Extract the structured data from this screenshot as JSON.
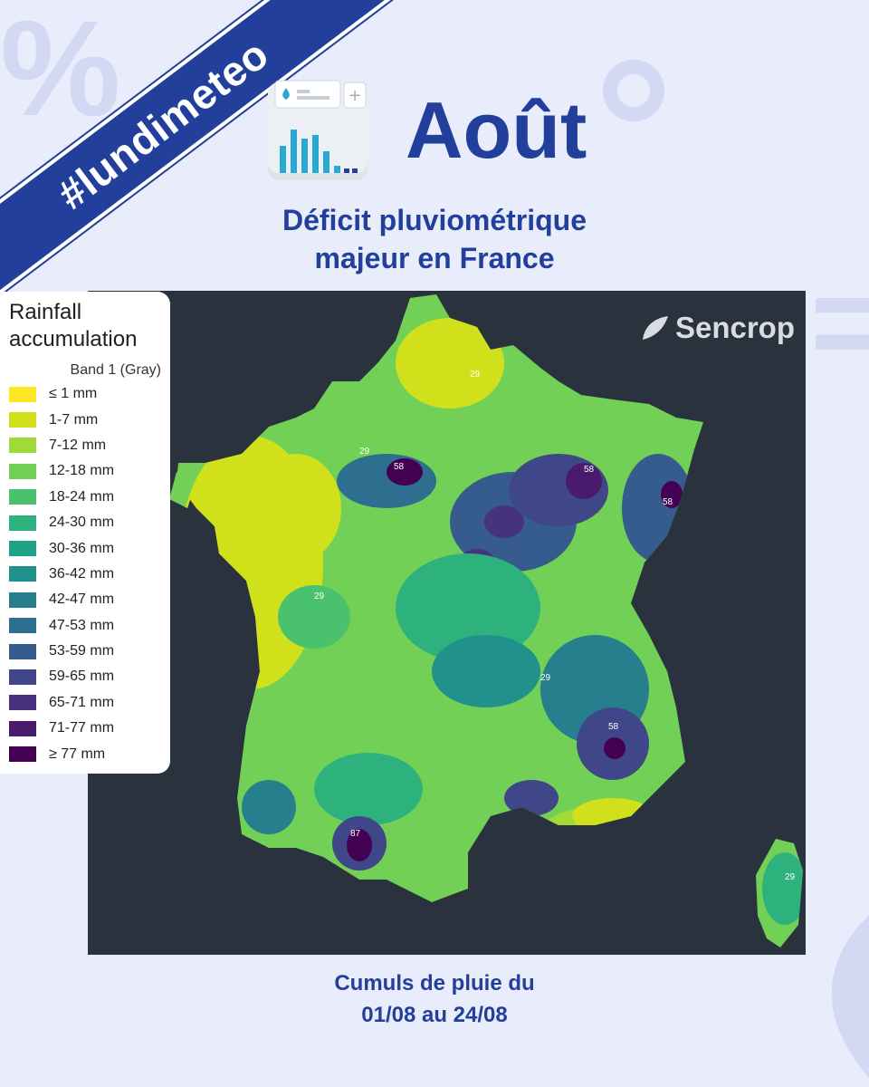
{
  "hashtag": "#lundimeteo",
  "title": "Août",
  "subtitle_line1": "Déficit pluviométrique",
  "subtitle_line2": "majeur en France",
  "brand": "Sencrop",
  "legend": {
    "title_line1": "Rainfall",
    "title_line2": "accumulation",
    "band": "Band 1 (Gray)",
    "items": [
      {
        "label": "≤ 1 mm",
        "color": "#fde725"
      },
      {
        "label": "1-7 mm",
        "color": "#d0e11c"
      },
      {
        "label": "7-12 mm",
        "color": "#a0da39"
      },
      {
        "label": "12-18 mm",
        "color": "#73d056"
      },
      {
        "label": "18-24 mm",
        "color": "#4ac16d"
      },
      {
        "label": "24-30 mm",
        "color": "#2db27d"
      },
      {
        "label": "30-36 mm",
        "color": "#1fa187"
      },
      {
        "label": "36-42 mm",
        "color": "#21918c"
      },
      {
        "label": "42-47 mm",
        "color": "#277f8e"
      },
      {
        "label": "47-53 mm",
        "color": "#2e6e8e"
      },
      {
        "label": "53-59 mm",
        "color": "#365c8d"
      },
      {
        "label": "59-65 mm",
        "color": "#3f4788"
      },
      {
        "label": "65-71 mm",
        "color": "#46327e"
      },
      {
        "label": "71-77 mm",
        "color": "#481b6d"
      },
      {
        "label": "≥ 77 mm",
        "color": "#440154"
      }
    ]
  },
  "contour_labels": [
    "29",
    "58",
    "87"
  ],
  "footer_line1": "Cumuls de pluie du",
  "footer_line2": "01/08  au 24/08",
  "colors": {
    "accent": "#22409b",
    "map_background": "#2a323d",
    "page_background": "#e9ecfb"
  }
}
